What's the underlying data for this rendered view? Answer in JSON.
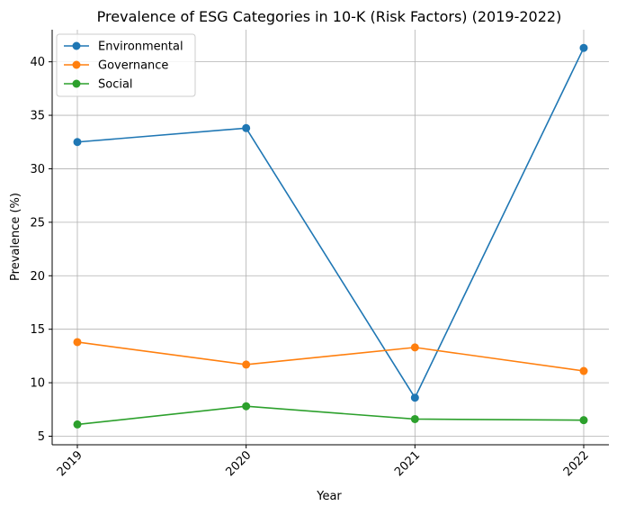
{
  "chart_data": {
    "type": "line",
    "title": "Prevalence of ESG Categories in 10-K (Risk Factors) (2019-2022)",
    "xlabel": "Year",
    "ylabel": "Prevalence (%)",
    "x": [
      "2019",
      "2020",
      "2021",
      "2022"
    ],
    "ylim": [
      4.2,
      43.0
    ],
    "yticks": [
      5,
      10,
      15,
      20,
      25,
      30,
      35,
      40
    ],
    "grid": true,
    "legend_position": "top-left",
    "series": [
      {
        "name": "Environmental",
        "color": "#1f77b4",
        "values": [
          32.5,
          33.8,
          8.6,
          41.3
        ]
      },
      {
        "name": "Governance",
        "color": "#ff7f0e",
        "values": [
          13.8,
          11.7,
          13.3,
          11.1
        ]
      },
      {
        "name": "Social",
        "color": "#2ca02c",
        "values": [
          6.1,
          7.8,
          6.6,
          6.5
        ]
      }
    ]
  }
}
